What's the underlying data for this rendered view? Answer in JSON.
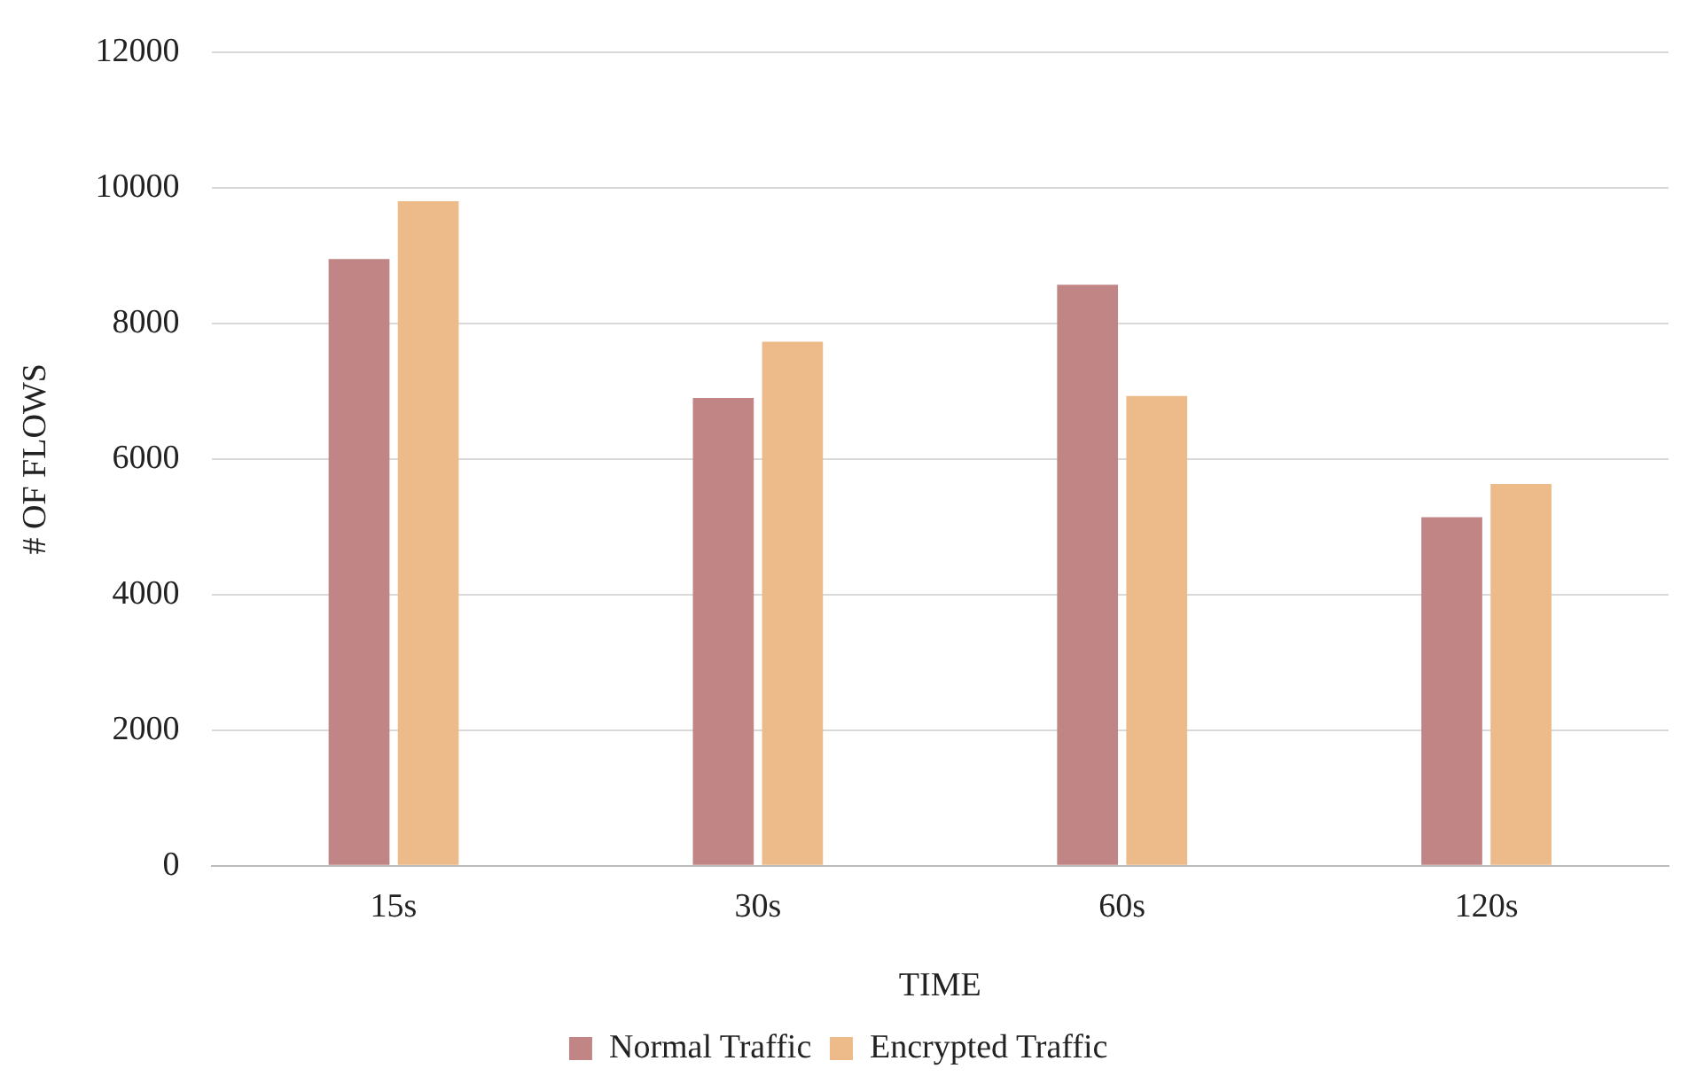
{
  "chart_data": {
    "type": "bar",
    "xlabel": "TIME",
    "ylabel": "# OF FLOWS",
    "categories": [
      "15s",
      "30s",
      "60s",
      "120s"
    ],
    "series": [
      {
        "name": "Normal Traffic",
        "color": "#c28585",
        "values": [
          8950,
          6900,
          8570,
          5140
        ]
      },
      {
        "name": "Encrypted Traffic",
        "color": "#edbb8a",
        "values": [
          9800,
          7730,
          6930,
          5630
        ]
      }
    ],
    "ylim": [
      0,
      12000
    ],
    "yticks": [
      0,
      2000,
      4000,
      6000,
      8000,
      10000,
      12000
    ],
    "grid": "y",
    "legend": "bottom"
  }
}
